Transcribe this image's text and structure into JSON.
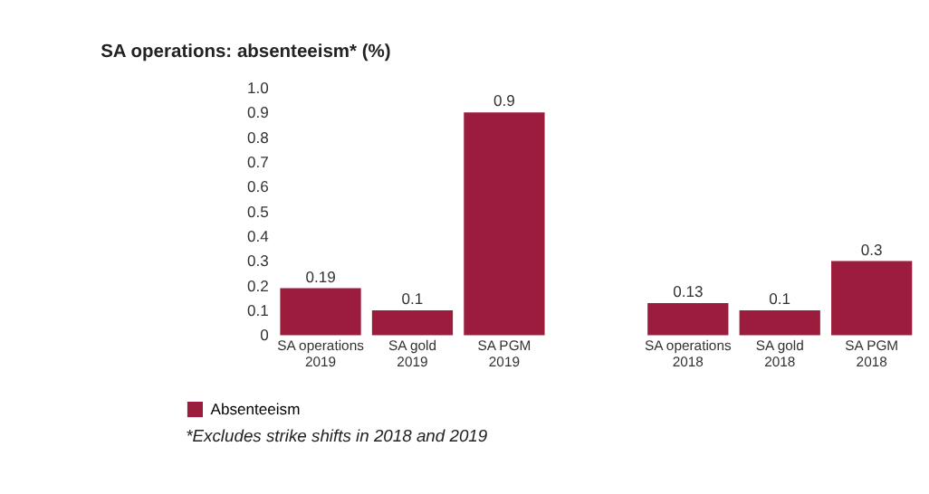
{
  "chart_data": {
    "type": "bar",
    "title": "SA operations: absenteeism* (%)",
    "categories": [
      "SA operations\n2019",
      "SA gold\n2019",
      "SA PGM\n2019",
      null,
      "SA operations\n2018",
      "SA gold\n2018",
      "SA PGM\n2018"
    ],
    "series": [
      {
        "name": "Absenteeism",
        "color": "#9b1c3c",
        "values": [
          0.19,
          0.1,
          0.9,
          null,
          0.13,
          0.1,
          0.3
        ]
      }
    ],
    "ylim": [
      0,
      1.0
    ],
    "yticks": [
      0,
      0.1,
      0.2,
      0.3,
      0.4,
      0.5,
      0.6,
      0.7,
      0.8,
      0.9,
      {
        "value": 1,
        "label": "1.0"
      }
    ],
    "data_labels": true,
    "grid": false,
    "legend": "bottom left",
    "annotations": [
      "*Excludes strike shifts in 2018 and 2019"
    ]
  }
}
